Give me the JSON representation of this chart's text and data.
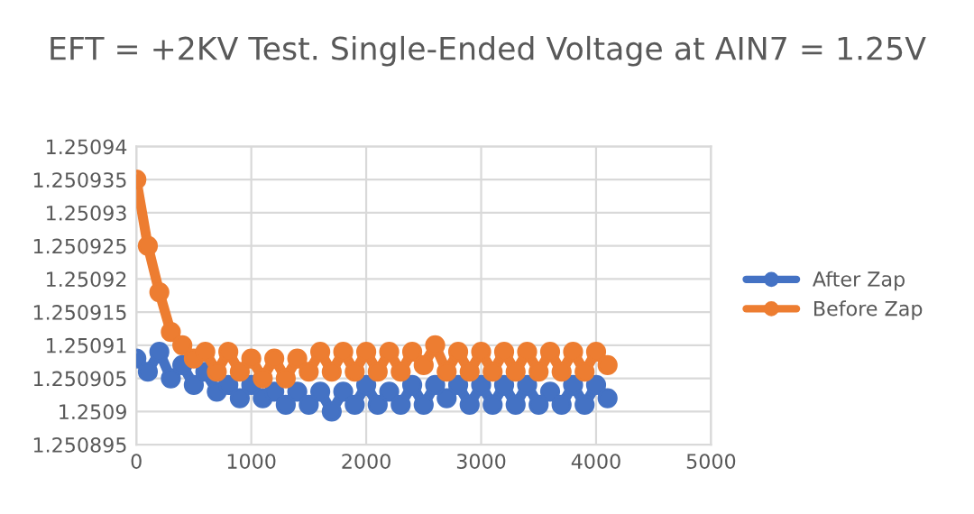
{
  "chart_data": {
    "type": "line",
    "title": "EFT = +2KV Test. Single-Ended Voltage at AIN7 = 1.25V",
    "x": [
      0,
      100,
      200,
      300,
      400,
      500,
      600,
      700,
      800,
      900,
      1000,
      1100,
      1200,
      1300,
      1400,
      1500,
      1600,
      1700,
      1800,
      1900,
      2000,
      2100,
      2200,
      2300,
      2400,
      2500,
      2600,
      2700,
      2800,
      2900,
      3000,
      3100,
      3200,
      3300,
      3400,
      3500,
      3600,
      3700,
      3800,
      3900,
      4000,
      4100
    ],
    "series": [
      {
        "name": "After Zap",
        "color": "#4472c4",
        "values": [
          1.250908,
          1.250906,
          1.250909,
          1.250905,
          1.250907,
          1.250904,
          1.250906,
          1.250903,
          1.250904,
          1.250902,
          1.250904,
          1.250902,
          1.250903,
          1.250901,
          1.250903,
          1.250901,
          1.250903,
          1.2509,
          1.250903,
          1.250901,
          1.250904,
          1.250901,
          1.250903,
          1.250901,
          1.250904,
          1.250901,
          1.250904,
          1.250902,
          1.250904,
          1.250901,
          1.250904,
          1.250901,
          1.250904,
          1.250901,
          1.250904,
          1.250901,
          1.250903,
          1.250901,
          1.250904,
          1.250901,
          1.250904,
          1.250902
        ]
      },
      {
        "name": "Before Zap",
        "color": "#ed7d31",
        "values": [
          1.250935,
          1.250925,
          1.250918,
          1.250912,
          1.25091,
          1.250908,
          1.250909,
          1.250906,
          1.250909,
          1.250906,
          1.250908,
          1.250905,
          1.250908,
          1.250905,
          1.250908,
          1.250906,
          1.250909,
          1.250906,
          1.250909,
          1.250906,
          1.250909,
          1.250906,
          1.250909,
          1.250906,
          1.250909,
          1.250907,
          1.25091,
          1.250906,
          1.250909,
          1.250906,
          1.250909,
          1.250906,
          1.250909,
          1.250906,
          1.250909,
          1.250906,
          1.250909,
          1.250906,
          1.250909,
          1.250906,
          1.250909,
          1.250907
        ]
      }
    ],
    "xlim": [
      0,
      5000
    ],
    "xticks": [
      0,
      1000,
      2000,
      3000,
      4000,
      5000
    ],
    "ylim": [
      1.250895,
      1.25094
    ],
    "yticks": [
      1.250895,
      1.2509,
      1.250905,
      1.25091,
      1.250915,
      1.25092,
      1.250925,
      1.25093,
      1.250935,
      1.25094
    ],
    "grid": true,
    "legend": "right",
    "marker": "circle",
    "line_style": "solid"
  }
}
